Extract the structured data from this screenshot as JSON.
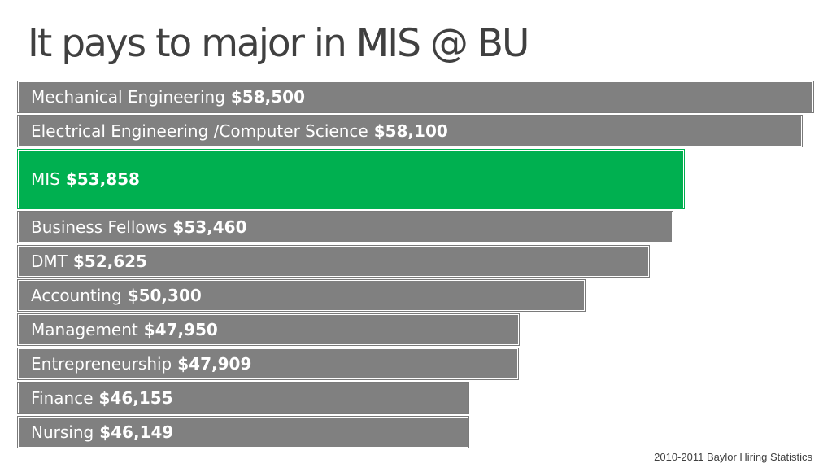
{
  "chart_data": {
    "type": "bar",
    "orientation": "horizontal",
    "title": "It pays to major in MIS @ BU",
    "categories": [
      "Mechanical Engineering",
      "Electrical Engineering /Computer Science",
      "MIS",
      "Business Fellows",
      "DMT",
      "Accounting",
      "Management",
      "Entrepreneurship",
      "Finance",
      "Nursing"
    ],
    "values": [
      58500,
      58100,
      53858,
      53460,
      52625,
      50300,
      47950,
      47909,
      46155,
      46149
    ],
    "value_labels": [
      "$58,500",
      "$58,100",
      "$53,858",
      "$53,460",
      "$52,625",
      "$50,300",
      "$47,950",
      "$47,909",
      "$46,155",
      "$46,149"
    ],
    "highlight_category": "MIS",
    "bar_color": "#808080",
    "highlight_color": "#00b050",
    "footnote": "2010-2011 Baylor Hiring Statistics"
  }
}
